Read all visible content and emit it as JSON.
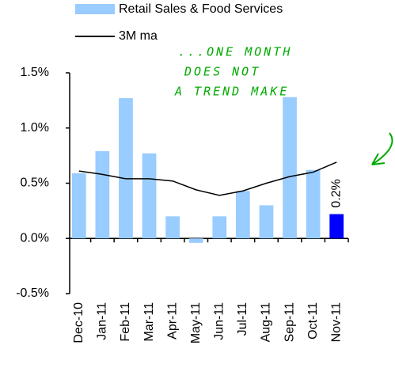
{
  "chart_data": {
    "type": "bar-line",
    "categories": [
      "Dec-10",
      "Jan-11",
      "Feb-11",
      "Mar-11",
      "Apr-11",
      "May-11",
      "Jun-11",
      "Jul-11",
      "Aug-11",
      "Sep-11",
      "Oct-11",
      "Nov-11"
    ],
    "series": [
      {
        "name": "Retail Sales & Food Services",
        "type": "bar",
        "color": "#99ccff",
        "colors": [
          "#99ccff",
          "#99ccff",
          "#99ccff",
          "#99ccff",
          "#99ccff",
          "#99ccff",
          "#99ccff",
          "#99ccff",
          "#99ccff",
          "#99ccff",
          "#99ccff",
          "#0000ff"
        ],
        "values": [
          0.59,
          0.79,
          1.27,
          0.77,
          0.2,
          -0.04,
          0.2,
          0.43,
          0.3,
          1.28,
          0.62,
          0.22
        ],
        "value_labels": [
          null,
          null,
          null,
          null,
          null,
          null,
          null,
          null,
          null,
          null,
          null,
          "0.2%"
        ]
      },
      {
        "name": "3M ma",
        "type": "line",
        "color": "#000000",
        "values": [
          0.61,
          0.58,
          0.54,
          0.54,
          0.52,
          0.44,
          0.39,
          0.43,
          0.5,
          0.56,
          0.6,
          0.69
        ]
      }
    ],
    "ylim": [
      -0.5,
      1.5
    ],
    "yticks": [
      {
        "value": -0.5,
        "label": "-0.5%"
      },
      {
        "value": 0,
        "label": "0.0%"
      },
      {
        "value": 0.5,
        "label": "0.5%"
      },
      {
        "value": 1,
        "label": "1.0%"
      },
      {
        "value": 1.5,
        "label": "1.5%"
      }
    ],
    "annotation": {
      "lines": [
        "...ONE MONTH",
        "DOES NOT",
        "A TREND MAKE"
      ],
      "color": "#00aa00"
    }
  }
}
